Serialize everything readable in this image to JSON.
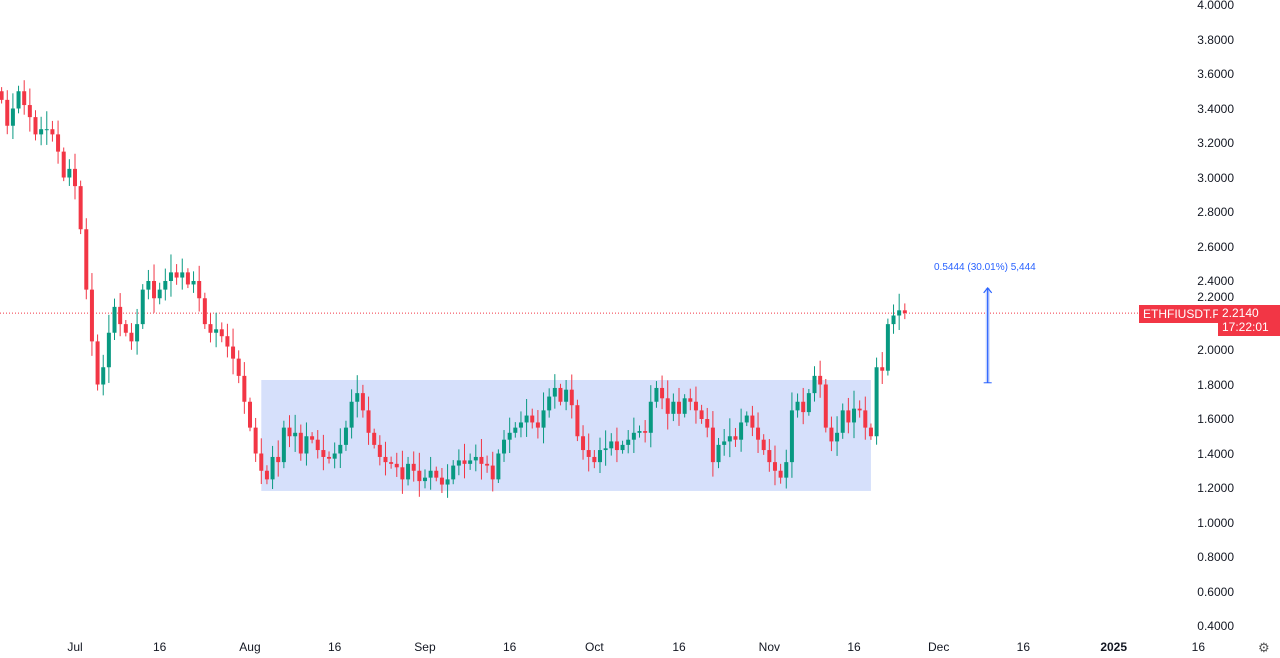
{
  "chart_data": {
    "type": "candlestick",
    "symbol": "ETHFIUSDT.P",
    "last_price": 2.214,
    "last_price_label": "2.2140",
    "countdown": "17:22:01",
    "ylim": [
      0.4,
      4.0
    ],
    "y_ticks": [
      "4.0000",
      "3.8000",
      "3.6000",
      "3.4000",
      "3.2000",
      "3.0000",
      "2.8000",
      "2.6000",
      "2.4000",
      "2.2000",
      "2.0000",
      "1.8000",
      "1.6000",
      "1.4000",
      "1.2000",
      "1.0000",
      "0.8000",
      "0.6000",
      "0.4000"
    ],
    "x_ticks": [
      {
        "label": "Jul",
        "date": "2024-07-01"
      },
      {
        "label": "16",
        "date": "2024-07-16"
      },
      {
        "label": "Aug",
        "date": "2024-08-01"
      },
      {
        "label": "16",
        "date": "2024-08-16"
      },
      {
        "label": "Sep",
        "date": "2024-09-01"
      },
      {
        "label": "16",
        "date": "2024-09-16"
      },
      {
        "label": "Oct",
        "date": "2024-10-01"
      },
      {
        "label": "16",
        "date": "2024-10-16"
      },
      {
        "label": "Nov",
        "date": "2024-11-01"
      },
      {
        "label": "16",
        "date": "2024-11-16"
      },
      {
        "label": "Dec",
        "date": "2024-12-01"
      },
      {
        "label": "16",
        "date": "2024-12-16"
      },
      {
        "label": "2025",
        "date": "2025-01-01",
        "bold": true
      },
      {
        "label": "16",
        "date": "2025-01-16"
      }
    ],
    "closes_by_month": [
      {
        "month": "2024-06",
        "start_day": 18,
        "closes": [
          3.45,
          3.3,
          3.4,
          3.5,
          3.42,
          3.35,
          3.25,
          3.28,
          3.28,
          3.25,
          3.15,
          3.0,
          3.05
        ]
      },
      {
        "month": "2024-07",
        "start_day": 1,
        "closes": [
          2.95,
          2.7,
          2.35,
          2.05,
          1.8,
          1.9,
          2.1,
          2.25,
          2.15,
          2.1,
          2.05,
          2.15,
          2.35,
          2.4,
          2.3,
          2.35,
          2.4,
          2.45,
          2.42,
          2.45,
          2.38,
          2.4,
          2.3,
          2.15,
          2.1,
          2.12,
          2.08,
          2.02,
          1.95,
          1.85,
          1.7
        ]
      },
      {
        "month": "2024-08",
        "start_day": 1,
        "closes": [
          1.55,
          1.4,
          1.3,
          1.25,
          1.38,
          1.35,
          1.55,
          1.5,
          1.52,
          1.4,
          1.5,
          1.48,
          1.42,
          1.38,
          1.37,
          1.4,
          1.45,
          1.55,
          1.7,
          1.75,
          1.65,
          1.52,
          1.45,
          1.38,
          1.35,
          1.34,
          1.32,
          1.25,
          1.34,
          1.3,
          1.24
        ]
      },
      {
        "month": "2024-09",
        "start_day": 1,
        "closes": [
          1.26,
          1.3,
          1.26,
          1.22,
          1.25,
          1.33,
          1.36,
          1.34,
          1.36,
          1.38,
          1.34,
          1.33,
          1.25,
          1.4,
          1.48,
          1.52,
          1.55,
          1.58,
          1.62,
          1.58,
          1.55,
          1.65,
          1.73,
          1.78,
          1.7,
          1.77,
          1.68,
          1.5,
          1.42,
          1.38
        ]
      },
      {
        "month": "2024-10",
        "start_day": 1,
        "closes": [
          1.35,
          1.42,
          1.43,
          1.47,
          1.42,
          1.45,
          1.48,
          1.52,
          1.53,
          1.52,
          1.7,
          1.78,
          1.72,
          1.63,
          1.7,
          1.63,
          1.72,
          1.7,
          1.65,
          1.6,
          1.55,
          1.35,
          1.45,
          1.47,
          1.5,
          1.48,
          1.58,
          1.62,
          1.55,
          1.48,
          1.42
        ]
      },
      {
        "month": "2024-11",
        "start_day": 1,
        "closes": [
          1.35,
          1.3,
          1.26,
          1.35,
          1.65,
          1.7,
          1.64,
          1.75,
          1.85,
          1.8,
          1.55,
          1.47,
          1.52,
          1.65,
          1.58,
          1.66,
          1.65,
          1.55,
          1.5,
          1.9,
          1.88,
          2.15,
          2.2,
          2.23,
          2.214
        ]
      }
    ],
    "range_box": {
      "from": "2024-08-03",
      "to": "2024-11-19",
      "low": 1.183,
      "high": 1.826
    },
    "measure": {
      "date": "2024-12-01",
      "from": 1.81,
      "to": 2.36,
      "label": "0.5444 (30.01%) 5,444"
    },
    "colors": {
      "up": "#089981",
      "down": "#f23645",
      "box": "#d6e0fb",
      "measure": "#2962ff",
      "price_line": "#f23645"
    }
  },
  "ui": {
    "settings_icon": "gear-icon"
  }
}
